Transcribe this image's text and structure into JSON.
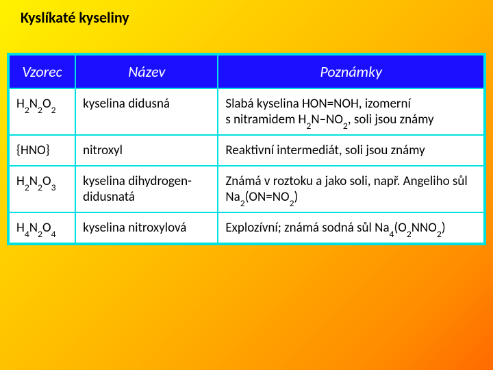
{
  "title": "Kyslíkaté kyseliny",
  "headers": {
    "col1": "Vzorec",
    "col2": "Název",
    "col3": "Poznámky"
  },
  "rows": {
    "r0": {
      "formula": "H<sub>2</sub>N<sub>2</sub>O<sub>2</sub>",
      "name": "kyselina didusná",
      "note": "Slabá kyselina HON=NOH, izomerní s nitramidem H<sub>2</sub>N–NO<sub>2</sub>, soli jsou známy"
    },
    "r1": {
      "formula": "{HNO}",
      "name": "nitroxyl",
      "note": "Reaktivní intermediát, soli jsou známy"
    },
    "r2": {
      "formula": "H<sub>2</sub>N<sub>2</sub>O<sub>3</sub>",
      "name": "kyselina dihydrogen-didusnatá",
      "note": "Známá v roztoku a jako soli, např. Angeliho sůl Na<sub>2</sub>(ON=NO<sub>2</sub>)"
    },
    "r3": {
      "formula": "H<sub>4</sub>N<sub>2</sub>O<sub>4</sub>",
      "name": "kyselina nitroxylová",
      "note": "Explozívní; známá sodná sůl Na<sub>4</sub>(O<sub>2</sub>NNO<sub>2</sub>)"
    }
  },
  "style": {
    "header_bg": "#1a0fff",
    "header_text": "#ffffff",
    "border_color": "#00e0e0",
    "cell_bg": "#ffffff",
    "title_fontsize": 22,
    "header_fontsize": 22,
    "cell_fontsize": 19
  }
}
